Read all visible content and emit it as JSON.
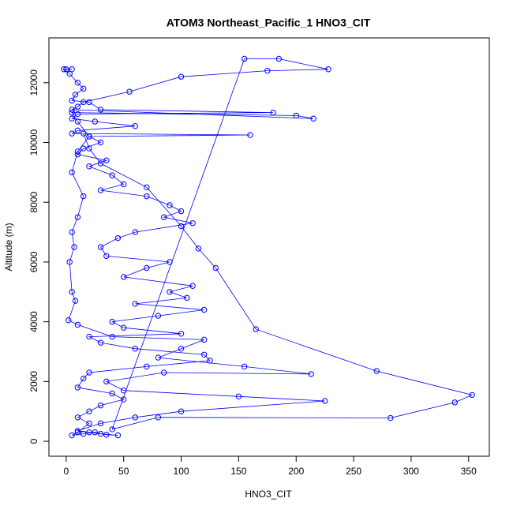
{
  "chart_data": {
    "type": "scatter",
    "title": "ATOM3 Northeast_Pacific_1 HNO3_CIT",
    "x_label": "HNO3_CIT",
    "y_label": "Altitude (m)",
    "color": "#0000ff",
    "x": [
      0,
      5,
      -2,
      3,
      10,
      15,
      8,
      5,
      20,
      30,
      180,
      10,
      5,
      25,
      60,
      10,
      5,
      160,
      20,
      30,
      15,
      10,
      35,
      20,
      40,
      50,
      30,
      70,
      90,
      100,
      85,
      110,
      60,
      45,
      30,
      35,
      90,
      70,
      50,
      110,
      90,
      105,
      60,
      120,
      80,
      40,
      50,
      100,
      20,
      30,
      60,
      120,
      125,
      70,
      20,
      15,
      10,
      40,
      50,
      30,
      20,
      10,
      20,
      10,
      5,
      15,
      25,
      35,
      45,
      30,
      20,
      10,
      30,
      60,
      100,
      225,
      150,
      50,
      35,
      85,
      213,
      155,
      80,
      100,
      120,
      40,
      10,
      2,
      8,
      5,
      3,
      7,
      5,
      10,
      15,
      5,
      10,
      20,
      10,
      5,
      200,
      215,
      5,
      10,
      15,
      55,
      100,
      175,
      228,
      185,
      155,
      40,
      80,
      282,
      338,
      353,
      270,
      165,
      130,
      115,
      100,
      70,
      30,
      20,
      15
    ],
    "values": [
      12450,
      12450,
      12450,
      12300,
      12000,
      11800,
      11600,
      11400,
      11350,
      11100,
      11000,
      10950,
      10800,
      10700,
      10550,
      10400,
      10300,
      10250,
      10200,
      10000,
      9800,
      9600,
      9400,
      9200,
      8900,
      8600,
      8400,
      8200,
      7900,
      7700,
      7500,
      7300,
      7000,
      6800,
      6500,
      6200,
      6000,
      5800,
      5500,
      5200,
      5000,
      4800,
      4600,
      4400,
      4200,
      4000,
      3800,
      3600,
      3500,
      3300,
      3100,
      2900,
      2700,
      2500,
      2300,
      2100,
      1800,
      1600,
      1400,
      1200,
      1000,
      800,
      600,
      300,
      200,
      250,
      300,
      220,
      200,
      250,
      300,
      350,
      600,
      800,
      1000,
      1350,
      1500,
      1700,
      2000,
      2300,
      2250,
      2500,
      2800,
      3100,
      3400,
      3500,
      3900,
      4050,
      4700,
      5000,
      6000,
      6500,
      7000,
      7500,
      8200,
      9000,
      9700,
      10200,
      10700,
      11000,
      10900,
      10800,
      11100,
      11200,
      11350,
      11700,
      12200,
      12400,
      12450,
      12800,
      12800,
      400,
      800,
      780,
      1300,
      1550,
      2350,
      3750,
      5800,
      6450,
      7200,
      8500,
      9300,
      9800,
      10300
    ],
    "xlim": [
      -15,
      368
    ],
    "ylim": [
      -500,
      13500
    ],
    "xticks": [
      0,
      50,
      100,
      150,
      200,
      250,
      300,
      350
    ],
    "yticks": [
      0,
      2000,
      4000,
      6000,
      8000,
      10000,
      12000
    ]
  }
}
